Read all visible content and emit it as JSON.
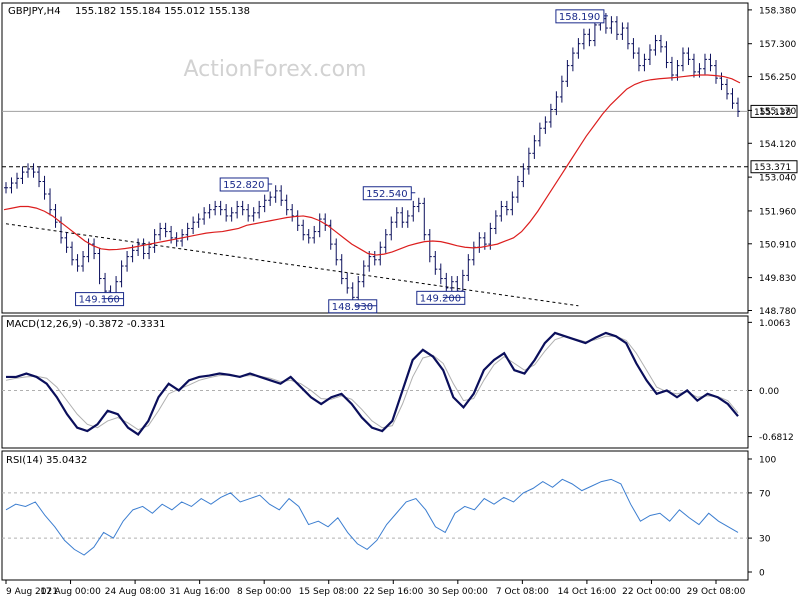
{
  "chart_data": {
    "type": "line",
    "symbol_label": "GBPJPY,H4",
    "ohlc_label": "155.182 155.184 155.012 155.138",
    "watermark": "ActionForex.com",
    "x_ticks": [
      "9 Aug 2021",
      "17 Aug 00:00",
      "24 Aug 08:00",
      "31 Aug 16:00",
      "8 Sep 00:00",
      "15 Sep 08:00",
      "22 Sep 16:00",
      "30 Sep 00:00",
      "7 Oct 08:00",
      "14 Oct 16:00",
      "22 Oct 00:00",
      "29 Oct 08:00"
    ],
    "price": {
      "y_ticks": [
        148.78,
        149.83,
        150.91,
        151.96,
        153.04,
        154.12,
        155.17,
        156.25,
        157.3,
        158.38
      ],
      "y_tick_labels": [
        "148.780",
        "149.830",
        "150.910",
        "151.960",
        "153.040",
        "154.120",
        "155.170",
        "156.250",
        "157.300",
        "158.380"
      ],
      "ylim": [
        148.7,
        158.6
      ],
      "close_path": [
        152.7,
        152.85,
        153.0,
        153.2,
        153.3,
        153.2,
        152.9,
        152.5,
        152.0,
        151.6,
        151.1,
        150.8,
        150.4,
        150.2,
        150.5,
        150.9,
        150.6,
        149.8,
        149.4,
        149.3,
        149.7,
        150.2,
        150.5,
        150.7,
        150.9,
        150.6,
        150.8,
        151.2,
        151.4,
        151.3,
        151.1,
        151.0,
        151.2,
        151.4,
        151.6,
        151.7,
        151.9,
        152.0,
        152.1,
        152.0,
        151.8,
        151.9,
        152.1,
        152.0,
        151.8,
        151.9,
        152.1,
        152.3,
        152.4,
        152.6,
        152.3,
        152.0,
        151.8,
        151.5,
        151.2,
        151.1,
        151.3,
        151.7,
        151.5,
        150.9,
        150.4,
        149.8,
        149.5,
        149.2,
        149.7,
        150.2,
        150.5,
        150.4,
        150.8,
        151.2,
        151.6,
        151.9,
        151.6,
        151.8,
        152.1,
        152.2,
        151.2,
        150.5,
        150.1,
        149.8,
        149.5,
        149.7,
        149.4,
        149.9,
        150.4,
        150.8,
        151.1,
        150.9,
        151.4,
        151.8,
        152.1,
        152.0,
        152.4,
        152.9,
        153.3,
        153.8,
        154.2,
        154.6,
        154.8,
        155.2,
        155.6,
        156.1,
        156.6,
        157.0,
        157.3,
        157.6,
        157.4,
        157.9,
        158.1,
        157.8,
        158.0,
        157.6,
        157.8,
        157.3,
        157.0,
        156.6,
        156.8,
        157.1,
        157.4,
        157.2,
        156.7,
        156.3,
        156.6,
        157.0,
        156.8,
        156.4,
        156.5,
        156.8,
        156.6,
        156.2,
        156.0,
        155.7,
        155.4,
        155.14
      ],
      "ma_path": [
        152.0,
        152.05,
        152.1,
        152.1,
        152.05,
        151.95,
        151.8,
        151.6,
        151.4,
        151.2,
        151.0,
        150.85,
        150.75,
        150.72,
        150.73,
        150.76,
        150.8,
        150.85,
        150.9,
        150.95,
        151.0,
        151.05,
        151.1,
        151.15,
        151.2,
        151.25,
        151.28,
        151.3,
        151.35,
        151.4,
        151.5,
        151.55,
        151.6,
        151.65,
        151.7,
        151.75,
        151.78,
        151.8,
        151.75,
        151.65,
        151.5,
        151.3,
        151.1,
        150.9,
        150.75,
        150.6,
        150.55,
        150.58,
        150.65,
        150.75,
        150.85,
        150.92,
        150.98,
        151.0,
        150.98,
        150.92,
        150.85,
        150.8,
        150.78,
        150.8,
        150.85,
        150.9,
        151.0,
        151.1,
        151.3,
        151.6,
        151.95,
        152.35,
        152.75,
        153.15,
        153.55,
        153.95,
        154.35,
        154.7,
        155.05,
        155.35,
        155.6,
        155.85,
        156.0,
        156.1,
        156.15,
        156.18,
        156.2,
        156.22,
        156.25,
        156.28,
        156.3,
        156.3,
        156.28,
        156.25,
        156.18,
        156.05
      ],
      "current_price": 155.138,
      "current_price_label": "155.138",
      "support_level": 153.371,
      "support_label": "153.371",
      "trendline": [
        {
          "i": 0,
          "v": 151.55
        },
        {
          "i": 104,
          "v": 148.93
        }
      ],
      "annotations": [
        {
          "text": "149.160",
          "i": 17,
          "v": 149.16
        },
        {
          "text": "152.820",
          "i": 48,
          "v": 152.82
        },
        {
          "text": "148.930",
          "i": 63,
          "v": 148.93
        },
        {
          "text": "152.540",
          "i": 74,
          "v": 152.54
        },
        {
          "text": "149.200",
          "i": 79,
          "v": 149.2
        },
        {
          "text": "158.190",
          "i": 109,
          "v": 158.19
        }
      ],
      "colors": {
        "bars": "#0b0f5b",
        "ma": "#dc1e1e",
        "support": "#000000",
        "trend": "#000000",
        "last_price": "#a0a0a0"
      }
    },
    "macd": {
      "label": "MACD(12,26,9) -0.3872 -0.3331",
      "y_ticks": [
        1.0063,
        0.0,
        -0.6812
      ],
      "y_tick_labels": [
        "1.0063",
        "0.00",
        "-0.6812"
      ],
      "ylim": [
        -0.85,
        1.1
      ],
      "macd_line": [
        0.2,
        0.2,
        0.25,
        0.2,
        0.1,
        -0.1,
        -0.35,
        -0.55,
        -0.6,
        -0.5,
        -0.3,
        -0.35,
        -0.55,
        -0.65,
        -0.45,
        -0.1,
        0.1,
        0.0,
        0.15,
        0.2,
        0.22,
        0.25,
        0.23,
        0.2,
        0.25,
        0.2,
        0.15,
        0.1,
        0.2,
        0.05,
        -0.1,
        -0.2,
        -0.1,
        -0.05,
        -0.2,
        -0.4,
        -0.55,
        -0.6,
        -0.45,
        0.0,
        0.45,
        0.6,
        0.5,
        0.3,
        -0.1,
        -0.25,
        -0.05,
        0.3,
        0.45,
        0.55,
        0.3,
        0.25,
        0.45,
        0.7,
        0.85,
        0.8,
        0.75,
        0.7,
        0.78,
        0.85,
        0.8,
        0.7,
        0.4,
        0.15,
        -0.05,
        0.0,
        -0.1,
        0.0,
        -0.15,
        -0.05,
        -0.1,
        -0.2,
        -0.38
      ],
      "signal_line": [
        0.15,
        0.18,
        0.2,
        0.21,
        0.18,
        0.05,
        -0.15,
        -0.35,
        -0.5,
        -0.55,
        -0.45,
        -0.4,
        -0.48,
        -0.58,
        -0.52,
        -0.3,
        -0.05,
        0.02,
        0.08,
        0.15,
        0.19,
        0.22,
        0.23,
        0.21,
        0.22,
        0.21,
        0.18,
        0.13,
        0.15,
        0.1,
        0.0,
        -0.12,
        -0.13,
        -0.08,
        -0.13,
        -0.28,
        -0.45,
        -0.55,
        -0.52,
        -0.2,
        0.2,
        0.48,
        0.52,
        0.4,
        0.1,
        -0.15,
        -0.12,
        0.15,
        0.38,
        0.5,
        0.4,
        0.3,
        0.38,
        0.58,
        0.75,
        0.8,
        0.76,
        0.72,
        0.75,
        0.8,
        0.8,
        0.74,
        0.55,
        0.3,
        0.05,
        -0.02,
        -0.05,
        -0.02,
        -0.1,
        -0.08,
        -0.09,
        -0.15,
        -0.33
      ],
      "colors": {
        "macd": "#0b0f5b",
        "signal": "#b0b0b0"
      }
    },
    "rsi": {
      "label": "RSI(14) 35.0432",
      "y_ticks": [
        100,
        70,
        30,
        0
      ],
      "y_tick_labels": [
        "100",
        "70",
        "30",
        "0"
      ],
      "ylim": [
        0,
        100
      ],
      "levels": [
        70,
        30
      ],
      "rsi_line": [
        55,
        60,
        58,
        62,
        50,
        40,
        28,
        20,
        15,
        22,
        35,
        30,
        45,
        55,
        58,
        52,
        60,
        55,
        62,
        58,
        65,
        60,
        66,
        70,
        62,
        65,
        68,
        60,
        55,
        65,
        58,
        42,
        45,
        40,
        48,
        35,
        25,
        20,
        28,
        42,
        52,
        62,
        65,
        55,
        40,
        35,
        52,
        58,
        55,
        65,
        60,
        66,
        62,
        70,
        74,
        80,
        75,
        82,
        78,
        72,
        76,
        80,
        82,
        78,
        60,
        45,
        50,
        52,
        45,
        55,
        48,
        42,
        52,
        45,
        40,
        35
      ],
      "color": "#3c7ed0"
    }
  }
}
